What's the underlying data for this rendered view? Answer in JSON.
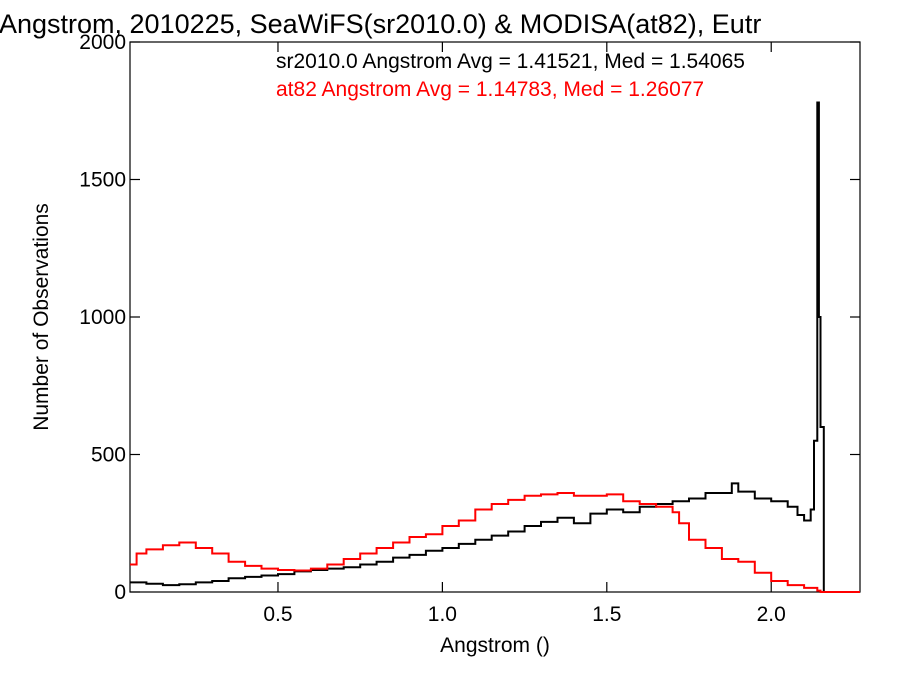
{
  "chart_data": {
    "type": "line",
    "title": "Angstrom, 2010225, SeaWiFS(sr2010.0) & MODISA(at82), Eutr",
    "xlabel": "Angstrom ()",
    "ylabel": "Number of Observations",
    "xlim": [
      0.05,
      2.27
    ],
    "ylim": [
      0,
      2000
    ],
    "x_ticks": [
      0.5,
      1.0,
      1.5,
      2.0
    ],
    "x_tick_labels": [
      "0.5",
      "1.0",
      "1.5",
      "2.0"
    ],
    "y_ticks": [
      0,
      500,
      1000,
      1500,
      2000
    ],
    "y_tick_labels": [
      "0",
      "500",
      "1000",
      "1500",
      "2000"
    ],
    "grid": false,
    "legend_position": "top-right",
    "annotations": [
      {
        "text": "sr2010.0 Angstrom Avg = 1.41521, Med = 1.54065",
        "color": "#000000"
      },
      {
        "text": "at82 Angstrom Avg = 1.14783, Med = 1.26077",
        "color": "#ff0000"
      }
    ],
    "series": [
      {
        "name": "sr2010.0",
        "color": "#000000",
        "x": [
          0.05,
          0.1,
          0.15,
          0.2,
          0.25,
          0.3,
          0.35,
          0.4,
          0.45,
          0.5,
          0.55,
          0.6,
          0.65,
          0.7,
          0.75,
          0.8,
          0.85,
          0.9,
          0.95,
          1.0,
          1.05,
          1.1,
          1.15,
          1.2,
          1.25,
          1.3,
          1.35,
          1.4,
          1.45,
          1.5,
          1.55,
          1.6,
          1.65,
          1.7,
          1.75,
          1.8,
          1.85,
          1.88,
          1.9,
          1.95,
          2.0,
          2.05,
          2.08,
          2.1,
          2.12,
          2.13,
          2.14,
          2.145,
          2.15,
          2.16,
          2.2,
          2.27
        ],
        "y": [
          35,
          30,
          25,
          28,
          35,
          40,
          50,
          55,
          60,
          65,
          75,
          80,
          85,
          90,
          100,
          110,
          125,
          135,
          150,
          160,
          175,
          190,
          205,
          220,
          240,
          255,
          270,
          250,
          285,
          300,
          290,
          310,
          320,
          330,
          340,
          360,
          360,
          395,
          365,
          340,
          330,
          310,
          280,
          260,
          300,
          550,
          1780,
          1000,
          600,
          0,
          0,
          0
        ]
      },
      {
        "name": "at82",
        "color": "#ff0000",
        "x": [
          0.05,
          0.07,
          0.1,
          0.15,
          0.2,
          0.25,
          0.3,
          0.35,
          0.4,
          0.45,
          0.5,
          0.55,
          0.6,
          0.65,
          0.7,
          0.75,
          0.8,
          0.85,
          0.9,
          0.95,
          1.0,
          1.05,
          1.1,
          1.15,
          1.2,
          1.25,
          1.3,
          1.35,
          1.4,
          1.45,
          1.5,
          1.55,
          1.6,
          1.65,
          1.7,
          1.72,
          1.75,
          1.8,
          1.85,
          1.9,
          1.95,
          2.0,
          2.05,
          2.1,
          2.14,
          2.15,
          2.2,
          2.27
        ],
        "y": [
          100,
          140,
          155,
          170,
          180,
          160,
          140,
          110,
          95,
          85,
          80,
          78,
          85,
          100,
          120,
          140,
          160,
          180,
          200,
          210,
          240,
          260,
          300,
          320,
          335,
          350,
          355,
          360,
          350,
          350,
          355,
          330,
          320,
          310,
          290,
          250,
          190,
          160,
          120,
          110,
          70,
          40,
          25,
          15,
          5,
          0,
          0,
          0
        ]
      }
    ]
  }
}
